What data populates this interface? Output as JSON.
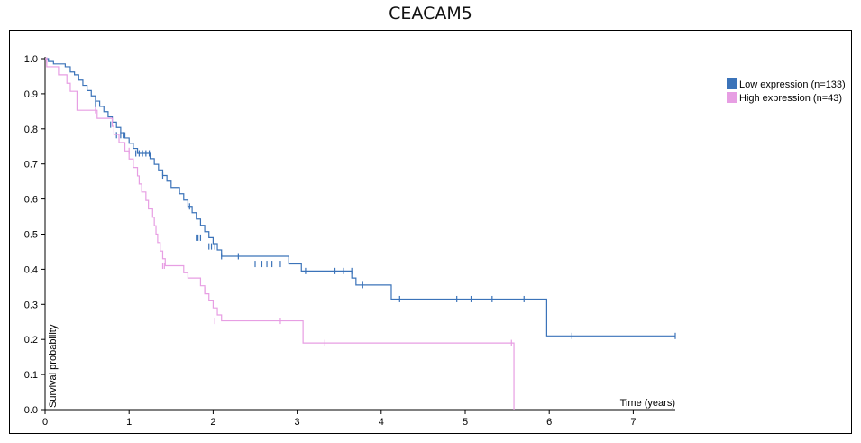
{
  "title": "CEACAM5",
  "chart_data": {
    "type": "line",
    "title": "CEACAM5",
    "xlabel": "Time (years)",
    "ylabel": "Survival probability",
    "xlim": [
      0,
      7.5
    ],
    "ylim": [
      0,
      1.0
    ],
    "x_ticks": [
      "0",
      "1",
      "2",
      "3",
      "4",
      "5",
      "6",
      "7"
    ],
    "y_ticks": [
      "0.0",
      "0.1",
      "0.2",
      "0.3",
      "0.4",
      "0.5",
      "0.6",
      "0.7",
      "0.8",
      "0.9",
      "1.0"
    ],
    "grid": false,
    "legend_position": "top-right",
    "series": [
      {
        "name": "Low expression (n=133)",
        "color": "#3b73b9",
        "steps": [
          [
            0,
            1.0
          ],
          [
            0.04,
            0.992
          ],
          [
            0.1,
            0.985
          ],
          [
            0.24,
            0.977
          ],
          [
            0.3,
            0.962
          ],
          [
            0.35,
            0.954
          ],
          [
            0.4,
            0.939
          ],
          [
            0.45,
            0.924
          ],
          [
            0.5,
            0.909
          ],
          [
            0.55,
            0.894
          ],
          [
            0.6,
            0.879
          ],
          [
            0.65,
            0.864
          ],
          [
            0.7,
            0.849
          ],
          [
            0.75,
            0.834
          ],
          [
            0.8,
            0.819
          ],
          [
            0.85,
            0.804
          ],
          [
            0.9,
            0.789
          ],
          [
            0.95,
            0.774
          ],
          [
            1.0,
            0.759
          ],
          [
            1.05,
            0.744
          ],
          [
            1.1,
            0.73
          ],
          [
            1.25,
            0.715
          ],
          [
            1.3,
            0.699
          ],
          [
            1.35,
            0.683
          ],
          [
            1.4,
            0.667
          ],
          [
            1.45,
            0.651
          ],
          [
            1.5,
            0.633
          ],
          [
            1.6,
            0.615
          ],
          [
            1.65,
            0.597
          ],
          [
            1.7,
            0.579
          ],
          [
            1.75,
            0.561
          ],
          [
            1.8,
            0.543
          ],
          [
            1.85,
            0.525
          ],
          [
            1.9,
            0.507
          ],
          [
            1.95,
            0.49
          ],
          [
            2.0,
            0.473
          ],
          [
            2.05,
            0.455
          ],
          [
            2.1,
            0.437
          ],
          [
            2.9,
            0.415
          ],
          [
            3.05,
            0.395
          ],
          [
            3.65,
            0.375
          ],
          [
            3.7,
            0.355
          ],
          [
            4.12,
            0.315
          ],
          [
            5.97,
            0.21
          ],
          [
            7.5,
            0.21
          ]
        ],
        "censors": [
          [
            0.6,
            0.87
          ],
          [
            0.78,
            0.812
          ],
          [
            0.85,
            0.782
          ],
          [
            0.9,
            0.782
          ],
          [
            0.93,
            0.782
          ],
          [
            1.08,
            0.73
          ],
          [
            1.12,
            0.73
          ],
          [
            1.16,
            0.73
          ],
          [
            1.2,
            0.73
          ],
          [
            1.24,
            0.73
          ],
          [
            1.4,
            0.667
          ],
          [
            1.72,
            0.579
          ],
          [
            1.8,
            0.49
          ],
          [
            1.82,
            0.49
          ],
          [
            1.85,
            0.49
          ],
          [
            1.95,
            0.465
          ],
          [
            1.98,
            0.465
          ],
          [
            2.02,
            0.465
          ],
          [
            2.1,
            0.437
          ],
          [
            2.3,
            0.437
          ],
          [
            2.5,
            0.415
          ],
          [
            2.58,
            0.415
          ],
          [
            2.64,
            0.415
          ],
          [
            2.7,
            0.415
          ],
          [
            2.8,
            0.415
          ],
          [
            3.1,
            0.395
          ],
          [
            3.45,
            0.395
          ],
          [
            3.55,
            0.395
          ],
          [
            3.65,
            0.395
          ],
          [
            3.78,
            0.355
          ],
          [
            4.22,
            0.315
          ],
          [
            4.9,
            0.315
          ],
          [
            5.07,
            0.315
          ],
          [
            5.32,
            0.315
          ],
          [
            5.7,
            0.315
          ],
          [
            6.27,
            0.21
          ],
          [
            7.5,
            0.21
          ]
        ]
      },
      {
        "name": "High expression (n=43)",
        "color": "#e79ee3",
        "steps": [
          [
            0,
            1.0
          ],
          [
            0.02,
            0.977
          ],
          [
            0.16,
            0.954
          ],
          [
            0.26,
            0.93
          ],
          [
            0.3,
            0.907
          ],
          [
            0.38,
            0.853
          ],
          [
            0.62,
            0.83
          ],
          [
            0.8,
            0.807
          ],
          [
            0.82,
            0.784
          ],
          [
            0.88,
            0.761
          ],
          [
            0.95,
            0.737
          ],
          [
            1.0,
            0.714
          ],
          [
            1.05,
            0.69
          ],
          [
            1.1,
            0.666
          ],
          [
            1.12,
            0.643
          ],
          [
            1.15,
            0.62
          ],
          [
            1.2,
            0.596
          ],
          [
            1.23,
            0.572
          ],
          [
            1.28,
            0.548
          ],
          [
            1.3,
            0.524
          ],
          [
            1.32,
            0.5
          ],
          [
            1.34,
            0.476
          ],
          [
            1.37,
            0.452
          ],
          [
            1.4,
            0.43
          ],
          [
            1.43,
            0.41
          ],
          [
            1.65,
            0.39
          ],
          [
            1.7,
            0.375
          ],
          [
            1.85,
            0.353
          ],
          [
            1.9,
            0.33
          ],
          [
            1.95,
            0.31
          ],
          [
            2.0,
            0.29
          ],
          [
            2.05,
            0.27
          ],
          [
            2.1,
            0.253
          ],
          [
            3.07,
            0.19
          ],
          [
            5.58,
            0.0
          ]
        ],
        "censors": [
          [
            0.02,
            0.995
          ],
          [
            0.6,
            0.853
          ],
          [
            1.0,
            0.737
          ],
          [
            1.4,
            0.41
          ],
          [
            1.42,
            0.41
          ],
          [
            1.9,
            0.34
          ],
          [
            2.02,
            0.253
          ],
          [
            2.8,
            0.253
          ],
          [
            3.33,
            0.19
          ],
          [
            5.55,
            0.19
          ]
        ]
      }
    ]
  }
}
